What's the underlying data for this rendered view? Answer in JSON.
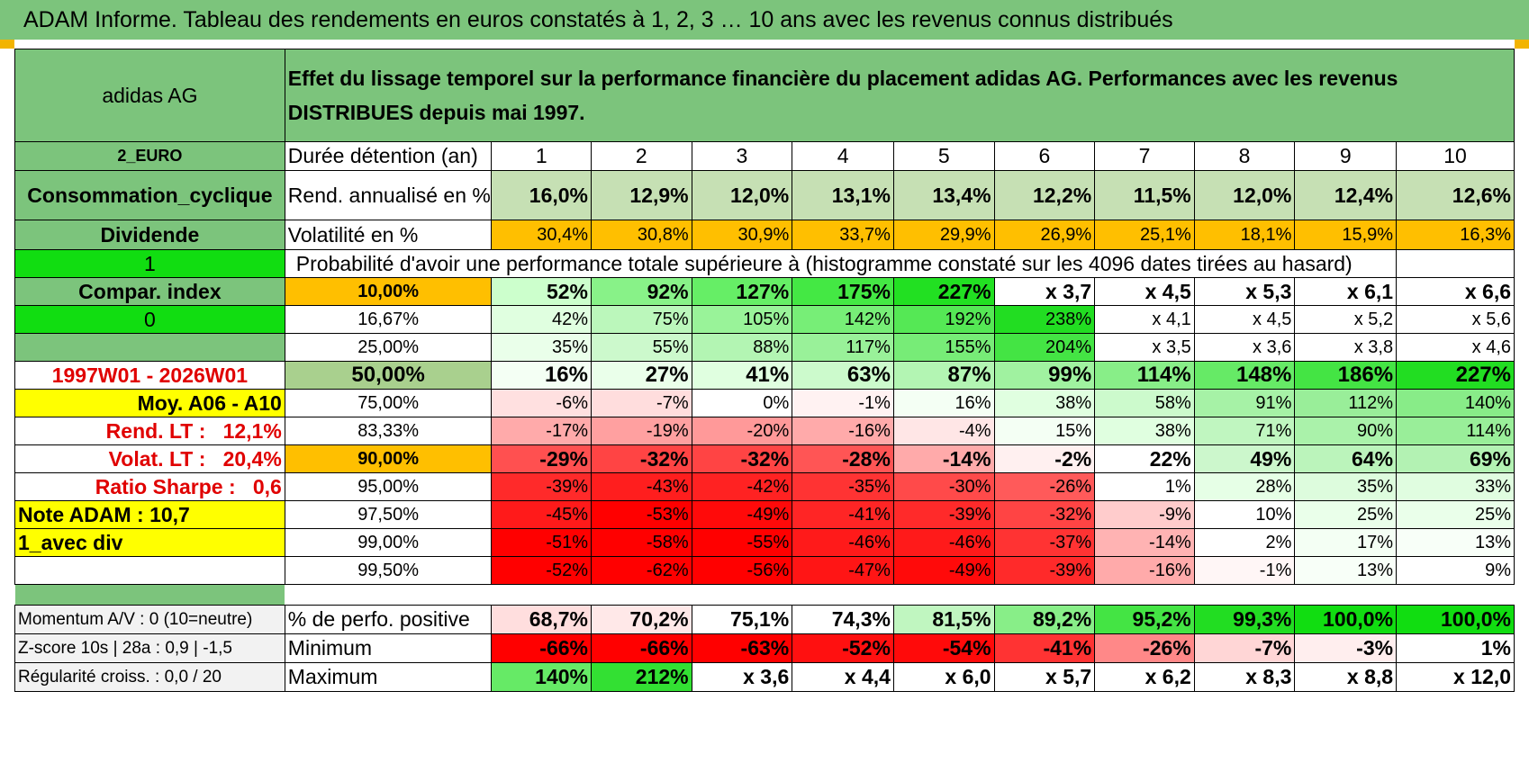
{
  "title": "ADAM Informe. Tableau des rendements en euros constatés à 1, 2, 3 … 10 ans avec les revenus connus distribués",
  "left": {
    "name": "adidas AG",
    "currency": "2_EURO",
    "sector": "Consommation_cyclique",
    "dist": "Dividende",
    "one": "1",
    "compar": "Compar. index",
    "zero": "0",
    "period": "1997W01 - 2026W01",
    "moy": "Moy. A06 - A10",
    "rend_lt_label": "Rend. LT :",
    "rend_lt_value": "12,1%",
    "volat_lt_label": "Volat. LT :",
    "volat_lt_value": "20,4%",
    "sharpe_label": "Ratio Sharpe :",
    "sharpe_value": "0,6",
    "note": "Note ADAM : 10,7",
    "avec_div": "1_avec div",
    "momentum": "Momentum A/V : 0 (10=neutre)",
    "zscore": "Z-score 10s | 28a : 0,9 | -1,5",
    "regularite": "Régularité croiss. : 0,0 / 20"
  },
  "header_desc": "Effet du lissage temporel sur la performance financière du placement adidas AG. Performances avec les revenus DISTRIBUES depuis mai 1997.",
  "duree_label": "Durée détention (an)",
  "years": [
    "1",
    "2",
    "3",
    "4",
    "5",
    "6",
    "7",
    "8",
    "9",
    "10"
  ],
  "rend": {
    "label": "Rend. annualisé en %",
    "values": [
      "16,0%",
      "12,9%",
      "12,0%",
      "13,1%",
      "13,4%",
      "12,2%",
      "11,5%",
      "12,0%",
      "12,4%",
      "12,6%"
    ]
  },
  "vol": {
    "label": "Volatilité en %",
    "values": [
      "30,4%",
      "30,8%",
      "30,9%",
      "33,7%",
      "29,9%",
      "26,9%",
      "25,1%",
      "18,1%",
      "15,9%",
      "16,3%"
    ]
  },
  "prob_title": "Probabilité d'avoir une performance totale supérieure à (histogramme constaté sur les 4096 dates tirées au hasard)",
  "pct_rows": [
    {
      "pct": "10,00%",
      "values": [
        "52%",
        "92%",
        "127%",
        "175%",
        "227%",
        "x 3,7",
        "x 4,5",
        "x 5,3",
        "x 6,1",
        "x 6,6"
      ],
      "colors": [
        "#ccffcc",
        "#88f288",
        "#66ee66",
        "#44e844",
        "#22e022",
        "#ffffff",
        "#ffffff",
        "#ffffff",
        "#ffffff",
        "#ffffff"
      ]
    },
    {
      "pct": "16,67%",
      "values": [
        "42%",
        "75%",
        "105%",
        "142%",
        "192%",
        "238%",
        "x 4,1",
        "x 4,5",
        "x 5,2",
        "x 5,6"
      ],
      "colors": [
        "#e0ffe0",
        "#bbf7bb",
        "#99f399",
        "#77ee77",
        "#55e855",
        "#22dd22",
        "#ffffff",
        "#ffffff",
        "#ffffff",
        "#ffffff"
      ]
    },
    {
      "pct": "25,00%",
      "values": [
        "35%",
        "55%",
        "88%",
        "117%",
        "155%",
        "204%",
        "x 3,5",
        "x 3,6",
        "x 3,8",
        "x 4,6"
      ],
      "colors": [
        "#eaffea",
        "#ccf9cc",
        "#b3f5b3",
        "#99f199",
        "#77ec77",
        "#44e444",
        "#ffffff",
        "#ffffff",
        "#ffffff",
        "#ffffff"
      ]
    },
    {
      "pct": "50,00%",
      "values": [
        "16%",
        "27%",
        "41%",
        "63%",
        "87%",
        "99%",
        "114%",
        "148%",
        "186%",
        "227%"
      ],
      "colors": [
        "#f4fff4",
        "#eaffea",
        "#e0ffe0",
        "#ccfacc",
        "#b3f5b3",
        "#a0f2a0",
        "#88ee88",
        "#66ea66",
        "#44e444",
        "#22dd22"
      ]
    },
    {
      "pct": "75,00%",
      "values": [
        "-6%",
        "-7%",
        "0%",
        "-1%",
        "16%",
        "38%",
        "58%",
        "91%",
        "112%",
        "140%"
      ],
      "colors": [
        "#ffe0e0",
        "#ffdddd",
        "#ffffff",
        "#fff2f2",
        "#f4fff4",
        "#e0ffe0",
        "#ccfacc",
        "#a6f2a6",
        "#99ee99",
        "#88ec88"
      ]
    },
    {
      "pct": "83,33%",
      "values": [
        "-17%",
        "-19%",
        "-20%",
        "-16%",
        "-4%",
        "15%",
        "38%",
        "71%",
        "90%",
        "114%"
      ],
      "colors": [
        "#ffaaaa",
        "#ffa0a0",
        "#ff9999",
        "#ffaaaa",
        "#ffe6e6",
        "#f4fff4",
        "#e0ffe0",
        "#c0f6c0",
        "#aaf2aa",
        "#99ee99"
      ]
    },
    {
      "pct": "90,00%",
      "values": [
        "-29%",
        "-32%",
        "-32%",
        "-28%",
        "-14%",
        "-2%",
        "22%",
        "49%",
        "64%",
        "69%"
      ],
      "colors": [
        "#ff5050",
        "#ff4444",
        "#ff4444",
        "#ff5555",
        "#ffaaaa",
        "#fff0f0",
        "#ffffff",
        "#ccf7cc",
        "#bbf4bb",
        "#b3f2b3"
      ]
    },
    {
      "pct": "95,00%",
      "values": [
        "-39%",
        "-43%",
        "-42%",
        "-35%",
        "-30%",
        "-26%",
        "1%",
        "28%",
        "35%",
        "33%"
      ],
      "colors": [
        "#ff2a2a",
        "#ff1e1e",
        "#ff2222",
        "#ff3333",
        "#ff4a4a",
        "#ff5a5a",
        "#ffffff",
        "#e6ffe6",
        "#ddfcdd",
        "#e0fde0"
      ]
    },
    {
      "pct": "97,50%",
      "values": [
        "-45%",
        "-53%",
        "-49%",
        "-41%",
        "-39%",
        "-32%",
        "-9%",
        "10%",
        "25%",
        "25%"
      ],
      "colors": [
        "#ff1a1a",
        "#ff0000",
        "#ff0a0a",
        "#ff2525",
        "#ff2a2a",
        "#ff4444",
        "#ffcccc",
        "#ffffff",
        "#eaffea",
        "#eaffea"
      ]
    },
    {
      "pct": "99,00%",
      "values": [
        "-51%",
        "-58%",
        "-55%",
        "-46%",
        "-46%",
        "-37%",
        "-14%",
        "2%",
        "17%",
        "13%"
      ],
      "colors": [
        "#ff0000",
        "#ff0000",
        "#ff0000",
        "#ff1a1a",
        "#ff1a1a",
        "#ff3333",
        "#ffb3b3",
        "#ffffff",
        "#f4fff4",
        "#f8fff8"
      ]
    },
    {
      "pct": "99,50%",
      "values": [
        "-52%",
        "-62%",
        "-56%",
        "-47%",
        "-49%",
        "-39%",
        "-16%",
        "-1%",
        "13%",
        "9%"
      ],
      "colors": [
        "#ff0000",
        "#ff0000",
        "#ff0000",
        "#ff1515",
        "#ff0a0a",
        "#ff2a2a",
        "#ffaaaa",
        "#fff6f6",
        "#f8fff8",
        "#ffffff"
      ]
    }
  ],
  "bottom": [
    {
      "label": "% de perfo. positive",
      "values": [
        "68,7%",
        "70,2%",
        "75,1%",
        "74,3%",
        "81,5%",
        "89,2%",
        "95,2%",
        "99,3%",
        "100,0%",
        "100,0%"
      ],
      "colors": [
        "#ffdede",
        "#ffe8e8",
        "#ffffff",
        "#ffffff",
        "#c0f6c0",
        "#88ee88",
        "#44e444",
        "#22dd22",
        "#11dd11",
        "#11dd11"
      ]
    },
    {
      "label": "Minimum",
      "values": [
        "-66%",
        "-66%",
        "-63%",
        "-52%",
        "-54%",
        "-41%",
        "-26%",
        "-7%",
        "-3%",
        "1%"
      ],
      "colors": [
        "#ff0000",
        "#ff0000",
        "#ff0000",
        "#ff1010",
        "#ff0a0a",
        "#ff3333",
        "#ff8888",
        "#ffd6d6",
        "#ffeeee",
        "#ffffff"
      ]
    },
    {
      "label": "Maximum",
      "values": [
        "140%",
        "212%",
        "x 3,6",
        "x 4,4",
        "x 6,0",
        "x 5,7",
        "x 6,2",
        "x 8,3",
        "x 8,8",
        "x 12,0"
      ],
      "colors": [
        "#66ea66",
        "#33e033",
        "#ffffff",
        "#ffffff",
        "#ffffff",
        "#ffffff",
        "#ffffff",
        "#ffffff",
        "#ffffff",
        "#ffffff"
      ]
    }
  ],
  "colors": {
    "green_label": "#7cc47c",
    "bright_green": "#11dd11",
    "yellow": "#ffff00",
    "orange": "#ffbf00",
    "rend_green": "#c6e0b4",
    "mid_green": "#a9d08e",
    "gray": "#f2f2f2"
  }
}
